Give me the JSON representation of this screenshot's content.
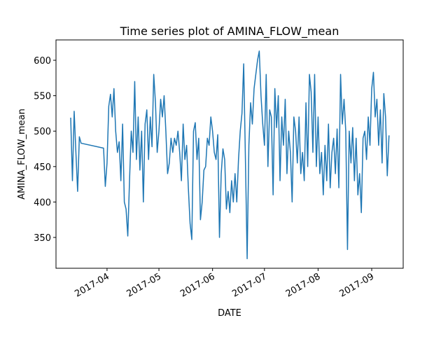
{
  "chart_data": {
    "type": "line",
    "title": "Time series plot of AMINA_FLOW_mean",
    "x_label": "DATE",
    "y_label": "AMINA_FLOW_mean",
    "color": "#1f77b4",
    "x": [
      17236,
      17237,
      17238,
      17239,
      17240,
      17241,
      17242,
      17255,
      17256,
      17257,
      17258,
      17259,
      17260,
      17261,
      17262,
      17263,
      17264,
      17265,
      17266,
      17267,
      17268,
      17269,
      17270,
      17271,
      17272,
      17273,
      17274,
      17275,
      17276,
      17277,
      17278,
      17279,
      17280,
      17281,
      17282,
      17283,
      17284,
      17285,
      17286,
      17287,
      17288,
      17289,
      17290,
      17291,
      17292,
      17293,
      17294,
      17295,
      17296,
      17297,
      17298,
      17299,
      17300,
      17301,
      17302,
      17303,
      17304,
      17305,
      17306,
      17307,
      17308,
      17309,
      17310,
      17311,
      17312,
      17313,
      17314,
      17315,
      17316,
      17317,
      17318,
      17319,
      17320,
      17321,
      17322,
      17323,
      17324,
      17325,
      17326,
      17327,
      17328,
      17329,
      17330,
      17331,
      17332,
      17333,
      17334,
      17335,
      17336,
      17337,
      17338,
      17339,
      17340,
      17341,
      17342,
      17343,
      17344,
      17345,
      17346,
      17347,
      17348,
      17349,
      17350,
      17351,
      17352,
      17353,
      17354,
      17355,
      17356,
      17357,
      17358,
      17359,
      17360,
      17361,
      17362,
      17363,
      17364,
      17365,
      17366,
      17367,
      17368,
      17369,
      17370,
      17371,
      17372,
      17373,
      17374,
      17375,
      17376,
      17377,
      17378,
      17379,
      17380,
      17381,
      17382,
      17383,
      17384,
      17385,
      17386,
      17387,
      17388,
      17389,
      17390,
      17391,
      17392,
      17393,
      17394,
      17395,
      17396,
      17397,
      17398,
      17399,
      17400,
      17401,
      17402,
      17403,
      17404,
      17405,
      17406,
      17407,
      17408,
      17409,
      17410,
      17411,
      17412,
      17413,
      17414,
      17415,
      17416,
      17417,
      17418,
      17419,
      17420
    ],
    "values": [
      519,
      430,
      528,
      470,
      415,
      492,
      483,
      476,
      422,
      455,
      535,
      552,
      520,
      560,
      500,
      470,
      485,
      430,
      510,
      400,
      390,
      352,
      430,
      500,
      470,
      570,
      460,
      520,
      445,
      500,
      400,
      510,
      530,
      460,
      520,
      478,
      580,
      540,
      470,
      500,
      545,
      520,
      550,
      500,
      440,
      455,
      490,
      470,
      490,
      480,
      500,
      470,
      430,
      510,
      460,
      480,
      420,
      370,
      347,
      500,
      512,
      460,
      490,
      375,
      400,
      445,
      450,
      490,
      480,
      520,
      500,
      470,
      460,
      495,
      350,
      440,
      475,
      460,
      390,
      415,
      385,
      430,
      400,
      440,
      400,
      460,
      500,
      525,
      595,
      460,
      320,
      480,
      540,
      510,
      560,
      580,
      600,
      613,
      550,
      510,
      480,
      580,
      450,
      530,
      520,
      410,
      560,
      505,
      550,
      430,
      520,
      480,
      545,
      440,
      500,
      470,
      400,
      520,
      500,
      455,
      520,
      440,
      470,
      430,
      540,
      450,
      580,
      555,
      470,
      580,
      450,
      520,
      440,
      470,
      410,
      480,
      430,
      510,
      420,
      470,
      490,
      440,
      503,
      420,
      580,
      510,
      545,
      500,
      333,
      500,
      455,
      505,
      430,
      490,
      410,
      440,
      385,
      490,
      500,
      460,
      520,
      480,
      560,
      583,
      520,
      545,
      480,
      530,
      455,
      553,
      520,
      437,
      494
    ],
    "xlim": [
      17227.5,
      17428.2
    ],
    "xticks": [
      {
        "value": 17257,
        "label": "2017-04"
      },
      {
        "value": 17287,
        "label": "2017-05"
      },
      {
        "value": 17318,
        "label": "2017-06"
      },
      {
        "value": 17348,
        "label": "2017-07"
      },
      {
        "value": 17379,
        "label": "2017-08"
      },
      {
        "value": 17410,
        "label": "2017-09"
      }
    ],
    "ylim": [
      306.5,
      628.7
    ],
    "yticks": [
      350,
      400,
      450,
      500,
      550,
      600
    ]
  }
}
